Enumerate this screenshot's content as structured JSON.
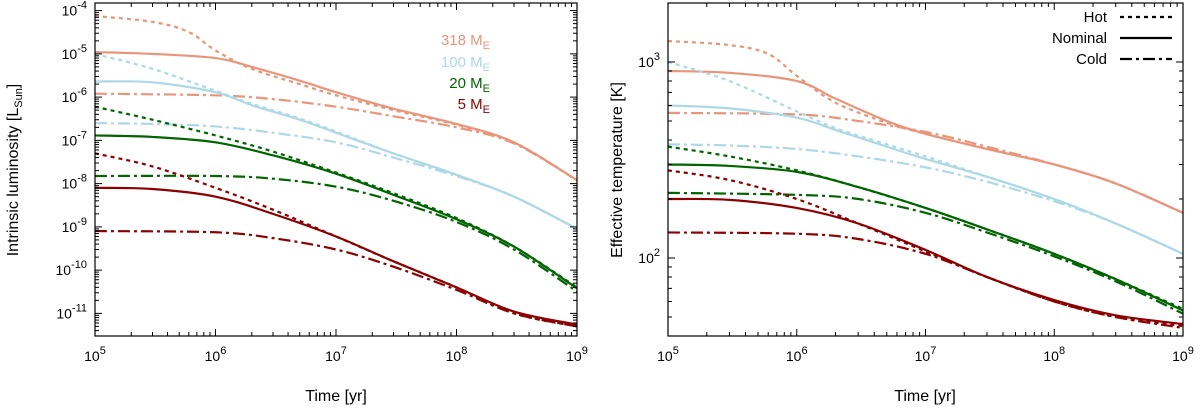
{
  "chart_data": [
    {
      "type": "line",
      "xscale": "log",
      "yscale": "log",
      "xlabel": "Time [yr]",
      "ylabel_main": "Intrinsic luminosity [L",
      "ylabel_sub": "Sun",
      "ylabel_end": "]",
      "xlim": [
        100000,
        1000000000
      ],
      "ylim": [
        3e-12,
        0.00015
      ],
      "x_ticks": [
        {
          "value": 100000,
          "base": "10",
          "exp": "5"
        },
        {
          "value": 1000000,
          "base": "10",
          "exp": "6"
        },
        {
          "value": 10000000,
          "base": "10",
          "exp": "7"
        },
        {
          "value": 100000000,
          "base": "10",
          "exp": "8"
        },
        {
          "value": 1000000000,
          "base": "10",
          "exp": "9"
        }
      ],
      "y_ticks": [
        {
          "value": 1e-11,
          "base": "10",
          "exp": "-11"
        },
        {
          "value": 1e-10,
          "base": "10",
          "exp": "-10"
        },
        {
          "value": 1e-09,
          "base": "10",
          "exp": "-9"
        },
        {
          "value": 1e-08,
          "base": "10",
          "exp": "-8"
        },
        {
          "value": 1e-07,
          "base": "10",
          "exp": "-7"
        },
        {
          "value": 1e-06,
          "base": "10",
          "exp": "-6"
        },
        {
          "value": 1e-05,
          "base": "10",
          "exp": "-5"
        },
        {
          "value": 0.0001,
          "base": "10",
          "exp": "-4"
        }
      ],
      "legend_position": "top-right",
      "legend": [
        {
          "main": "318 M",
          "sub": "E",
          "color": "#e9957a"
        },
        {
          "main": "100 M",
          "sub": "E",
          "color": "#add8e6"
        },
        {
          "main": "20 M",
          "sub": "E",
          "color": "#006400"
        },
        {
          "main": "5 M",
          "sub": "E",
          "color": "#8b0000"
        }
      ],
      "series": [
        {
          "name": "318 ME Hot",
          "color": "#e9957a",
          "style": "hot",
          "x": [
            100000.0,
            300000.0,
            600000.0,
            1000000.0,
            2000000.0,
            5000000.0,
            10000000.0,
            30000000.0,
            100000000.0,
            300000000.0,
            1000000000.0
          ],
          "y": [
            7.5e-05,
            5.5e-05,
            3.2e-05,
            1.2e-05,
            4.5e-06,
            2e-06,
            1.1e-06,
            5e-07,
            2.3e-07,
            9e-08,
            1.2e-08
          ]
        },
        {
          "name": "318 ME Nominal",
          "color": "#e9957a",
          "style": "nominal",
          "x": [
            100000.0,
            300000.0,
            1000000.0,
            2000000.0,
            5000000.0,
            10000000.0,
            30000000.0,
            100000000.0,
            300000000.0,
            1000000000.0
          ],
          "y": [
            1.1e-05,
            1e-05,
            8e-06,
            5e-06,
            2.4e-06,
            1.3e-06,
            5.4e-07,
            2.4e-07,
            9e-08,
            1.2e-08
          ]
        },
        {
          "name": "318 ME Cold",
          "color": "#e9957a",
          "style": "cold",
          "x": [
            100000.0,
            1000000.0,
            3000000.0,
            10000000.0,
            30000000.0,
            100000000.0,
            300000000.0,
            1000000000.0
          ],
          "y": [
            1.2e-06,
            1.1e-06,
            9e-07,
            6e-07,
            3.6e-07,
            2e-07,
            8.5e-08,
            1.2e-08
          ]
        },
        {
          "name": "100 ME Hot",
          "color": "#add8e6",
          "style": "hot",
          "x": [
            100000.0,
            300000.0,
            1000000.0,
            2000000.0,
            5000000.0,
            10000000.0,
            30000000.0,
            100000000.0,
            300000000.0,
            1000000000.0
          ],
          "y": [
            1e-05,
            4.5e-06,
            1.4e-06,
            7e-07,
            3.2e-07,
            1.6e-07,
            5e-08,
            1.6e-08,
            5e-09,
            9e-10
          ]
        },
        {
          "name": "100 ME Nominal",
          "color": "#add8e6",
          "style": "nominal",
          "x": [
            100000.0,
            300000.0,
            1000000.0,
            2000000.0,
            5000000.0,
            10000000.0,
            30000000.0,
            100000000.0,
            300000000.0,
            1000000000.0
          ],
          "y": [
            2.3e-06,
            2.2e-06,
            1.3e-06,
            6.5e-07,
            3e-07,
            1.5e-07,
            5e-08,
            1.6e-08,
            5e-09,
            9e-10
          ]
        },
        {
          "name": "100 ME Cold",
          "color": "#add8e6",
          "style": "cold",
          "x": [
            100000.0,
            300000.0,
            1000000.0,
            3000000.0,
            10000000.0,
            30000000.0,
            100000000.0,
            300000000.0,
            1000000000.0
          ],
          "y": [
            2.5e-07,
            2.4e-07,
            2.1e-07,
            1.5e-07,
            9e-08,
            4e-08,
            1.5e-08,
            5e-09,
            9e-10
          ]
        },
        {
          "name": "20 ME Hot",
          "color": "#006400",
          "style": "hot",
          "x": [
            100000.0,
            300000.0,
            1000000.0,
            3000000.0,
            10000000.0,
            30000000.0,
            100000000.0,
            300000000.0,
            1000000000.0
          ],
          "y": [
            6e-07,
            3e-07,
            1.3e-07,
            5.5e-08,
            1.8e-08,
            6e-09,
            1.6e-09,
            3.5e-10,
            4e-11
          ]
        },
        {
          "name": "20 ME Nominal",
          "color": "#006400",
          "style": "nominal",
          "x": [
            100000.0,
            300000.0,
            1000000.0,
            3000000.0,
            10000000.0,
            30000000.0,
            100000000.0,
            300000000.0,
            1000000000.0
          ],
          "y": [
            1.3e-07,
            1.2e-07,
            9e-08,
            4.5e-08,
            1.7e-08,
            5.5e-09,
            1.5e-09,
            3.5e-10,
            3.8e-11
          ]
        },
        {
          "name": "20 ME Cold",
          "color": "#006400",
          "style": "cold",
          "x": [
            100000.0,
            1000000.0,
            3000000.0,
            10000000.0,
            30000000.0,
            100000000.0,
            300000000.0,
            1000000000.0
          ],
          "y": [
            1.5e-08,
            1.5e-08,
            1.3e-08,
            8.5e-09,
            4e-09,
            1.3e-09,
            3e-10,
            3.2e-11
          ]
        },
        {
          "name": "5 ME Hot",
          "color": "#8b0000",
          "style": "hot",
          "x": [
            100000.0,
            300000.0,
            1000000.0,
            3000000.0,
            10000000.0,
            30000000.0,
            100000000.0,
            300000000.0,
            1000000000.0
          ],
          "y": [
            5e-08,
            2.5e-08,
            8e-09,
            2.5e-09,
            6e-10,
            1.6e-10,
            4e-11,
            1e-11,
            5e-12
          ]
        },
        {
          "name": "5 ME Nominal",
          "color": "#8b0000",
          "style": "nominal",
          "x": [
            100000.0,
            300000.0,
            1000000.0,
            3000000.0,
            10000000.0,
            30000000.0,
            100000000.0,
            300000000.0,
            1000000000.0
          ],
          "y": [
            8e-09,
            7.5e-09,
            5e-09,
            2e-09,
            6e-10,
            1.6e-10,
            4e-11,
            1.1e-11,
            5.5e-12
          ]
        },
        {
          "name": "5 ME Cold",
          "color": "#8b0000",
          "style": "cold",
          "x": [
            100000.0,
            1000000.0,
            3000000.0,
            10000000.0,
            30000000.0,
            100000000.0,
            300000000.0,
            1000000000.0
          ],
          "y": [
            8e-10,
            7.5e-10,
            5.5e-10,
            3e-10,
            1.2e-10,
            3.5e-11,
            1e-11,
            5e-12
          ]
        }
      ]
    },
    {
      "type": "line",
      "xscale": "log",
      "yscale": "log",
      "xlabel": "Time [yr]",
      "ylabel": "Effective temperature [K]",
      "xlim": [
        100000,
        1000000000
      ],
      "ylim": [
        40,
        2000
      ],
      "x_ticks": [
        {
          "value": 100000,
          "base": "10",
          "exp": "5"
        },
        {
          "value": 1000000,
          "base": "10",
          "exp": "6"
        },
        {
          "value": 10000000,
          "base": "10",
          "exp": "7"
        },
        {
          "value": 100000000,
          "base": "10",
          "exp": "8"
        },
        {
          "value": 1000000000,
          "base": "10",
          "exp": "9"
        }
      ],
      "y_ticks": [
        {
          "value": 100,
          "base": "10",
          "exp": "2"
        },
        {
          "value": 1000,
          "base": "10",
          "exp": "3"
        }
      ],
      "legend_position": "top-right",
      "legend": [
        {
          "label": "Hot",
          "style": "hot"
        },
        {
          "label": "Nominal",
          "style": "nominal"
        },
        {
          "label": "Cold",
          "style": "cold"
        }
      ],
      "series": [
        {
          "name": "318 ME Hot",
          "color": "#e9957a",
          "style": "hot",
          "x": [
            100000.0,
            300000.0,
            600000.0,
            1000000.0,
            2000000.0,
            5000000.0,
            10000000.0,
            30000000.0,
            100000000.0,
            300000000.0,
            1000000000.0
          ],
          "y": [
            1280,
            1220,
            1100,
            850,
            620,
            490,
            430,
            360,
            300,
            240,
            170
          ]
        },
        {
          "name": "318 ME Nominal",
          "color": "#e9957a",
          "style": "nominal",
          "x": [
            100000.0,
            300000.0,
            1000000.0,
            2000000.0,
            5000000.0,
            10000000.0,
            30000000.0,
            100000000.0,
            300000000.0,
            1000000000.0
          ],
          "y": [
            900,
            880,
            800,
            650,
            500,
            430,
            360,
            300,
            240,
            170
          ]
        },
        {
          "name": "318 ME Cold",
          "color": "#e9957a",
          "style": "cold",
          "x": [
            100000.0,
            1000000.0,
            3000000.0,
            10000000.0,
            30000000.0,
            100000000.0,
            300000000.0,
            1000000000.0
          ],
          "y": [
            550,
            540,
            500,
            440,
            370,
            300,
            240,
            170
          ]
        },
        {
          "name": "100 ME Hot",
          "color": "#add8e6",
          "style": "hot",
          "x": [
            100000.0,
            300000.0,
            1000000.0,
            2000000.0,
            5000000.0,
            10000000.0,
            30000000.0,
            100000000.0,
            300000000.0,
            1000000000.0
          ],
          "y": [
            1000,
            800,
            560,
            460,
            380,
            330,
            260,
            200,
            150,
            105
          ]
        },
        {
          "name": "100 ME Nominal",
          "color": "#add8e6",
          "style": "nominal",
          "x": [
            100000.0,
            300000.0,
            1000000.0,
            2000000.0,
            5000000.0,
            10000000.0,
            30000000.0,
            100000000.0,
            300000000.0,
            1000000000.0
          ],
          "y": [
            600,
            580,
            520,
            450,
            370,
            320,
            260,
            200,
            150,
            105
          ]
        },
        {
          "name": "100 ME Cold",
          "color": "#add8e6",
          "style": "cold",
          "x": [
            100000.0,
            300000.0,
            1000000.0,
            3000000.0,
            10000000.0,
            30000000.0,
            100000000.0,
            300000000.0,
            1000000000.0
          ],
          "y": [
            380,
            375,
            360,
            330,
            290,
            245,
            195,
            150,
            105
          ]
        },
        {
          "name": "20 ME Hot",
          "color": "#006400",
          "style": "hot",
          "x": [
            100000.0,
            300000.0,
            1000000.0,
            3000000.0,
            10000000.0,
            30000000.0,
            100000000.0,
            300000000.0,
            1000000000.0
          ],
          "y": [
            370,
            330,
            280,
            230,
            180,
            140,
            105,
            78,
            55
          ]
        },
        {
          "name": "20 ME Nominal",
          "color": "#006400",
          "style": "nominal",
          "x": [
            100000.0,
            300000.0,
            1000000.0,
            3000000.0,
            10000000.0,
            30000000.0,
            100000000.0,
            300000000.0,
            1000000000.0
          ],
          "y": [
            300,
            295,
            275,
            230,
            180,
            140,
            105,
            78,
            54
          ]
        },
        {
          "name": "20 ME Cold",
          "color": "#006400",
          "style": "cold",
          "x": [
            100000.0,
            1000000.0,
            3000000.0,
            10000000.0,
            30000000.0,
            100000000.0,
            300000000.0,
            1000000000.0
          ],
          "y": [
            215,
            210,
            200,
            170,
            135,
            102,
            76,
            52
          ]
        },
        {
          "name": "5 ME Hot",
          "color": "#8b0000",
          "style": "hot",
          "x": [
            100000.0,
            300000.0,
            1000000.0,
            3000000.0,
            10000000.0,
            30000000.0,
            100000000.0,
            300000000.0,
            1000000000.0
          ],
          "y": [
            280,
            250,
            200,
            150,
            108,
            80,
            60,
            50,
            45
          ]
        },
        {
          "name": "5 ME Nominal",
          "color": "#8b0000",
          "style": "nominal",
          "x": [
            100000.0,
            300000.0,
            1000000.0,
            3000000.0,
            10000000.0,
            30000000.0,
            100000000.0,
            300000000.0,
            1000000000.0
          ],
          "y": [
            200,
            198,
            180,
            150,
            110,
            80,
            61,
            51,
            46
          ]
        },
        {
          "name": "5 ME Cold",
          "color": "#8b0000",
          "style": "cold",
          "x": [
            100000.0,
            1000000.0,
            3000000.0,
            10000000.0,
            30000000.0,
            100000000.0,
            300000000.0,
            1000000000.0
          ],
          "y": [
            135,
            133,
            125,
            105,
            80,
            60,
            50,
            44
          ]
        }
      ]
    }
  ]
}
